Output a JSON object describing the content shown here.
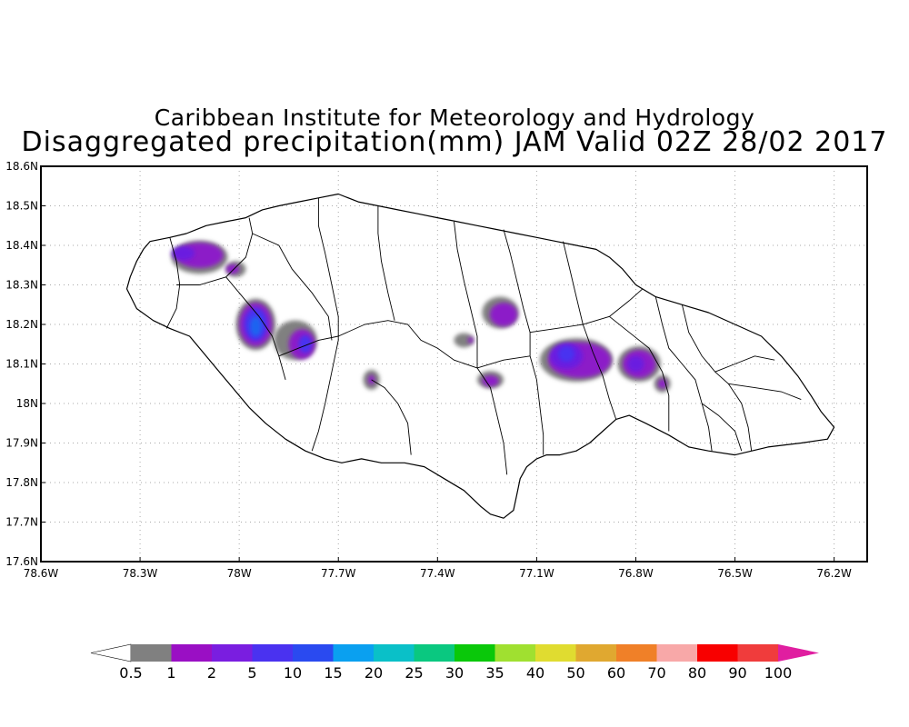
{
  "title": {
    "line1": "Caribbean Institute for Meteorology and Hydrology",
    "line2": "Disaggregated precipitation(mm) JAM Valid 02Z 28/02 2017"
  },
  "map": {
    "lon_range": [
      -78.6,
      -76.1
    ],
    "lat_range": [
      17.6,
      18.6
    ],
    "lat_ticks": [
      {
        "value": 18.6,
        "label": "18.6N"
      },
      {
        "value": 18.5,
        "label": "18.5N"
      },
      {
        "value": 18.4,
        "label": "18.4N"
      },
      {
        "value": 18.3,
        "label": "18.3N"
      },
      {
        "value": 18.2,
        "label": "18.2N"
      },
      {
        "value": 18.1,
        "label": "18.1N"
      },
      {
        "value": 18.0,
        "label": "18N"
      },
      {
        "value": 17.9,
        "label": "17.9N"
      },
      {
        "value": 17.8,
        "label": "17.8N"
      },
      {
        "value": 17.7,
        "label": "17.7N"
      },
      {
        "value": 17.6,
        "label": "17.6N"
      }
    ],
    "lon_ticks": [
      {
        "value": -78.6,
        "label": "78.6W"
      },
      {
        "value": -78.3,
        "label": "78.3W"
      },
      {
        "value": -78.0,
        "label": "78W"
      },
      {
        "value": -77.7,
        "label": "77.7W"
      },
      {
        "value": -77.4,
        "label": "77.4W"
      },
      {
        "value": -77.1,
        "label": "77.1W"
      },
      {
        "value": -76.8,
        "label": "76.8W"
      },
      {
        "value": -76.5,
        "label": "76.5W"
      },
      {
        "value": -76.2,
        "label": "76.2W"
      }
    ],
    "coastline": [
      [
        -78.34,
        18.29
      ],
      [
        -78.33,
        18.32
      ],
      [
        -78.31,
        18.36
      ],
      [
        -78.29,
        18.39
      ],
      [
        -78.27,
        18.41
      ],
      [
        -78.21,
        18.42
      ],
      [
        -78.16,
        18.43
      ],
      [
        -78.1,
        18.45
      ],
      [
        -78.04,
        18.46
      ],
      [
        -77.98,
        18.47
      ],
      [
        -77.93,
        18.49
      ],
      [
        -77.88,
        18.5
      ],
      [
        -77.82,
        18.51
      ],
      [
        -77.76,
        18.52
      ],
      [
        -77.7,
        18.53
      ],
      [
        -77.64,
        18.51
      ],
      [
        -77.58,
        18.5
      ],
      [
        -77.52,
        18.49
      ],
      [
        -77.46,
        18.48
      ],
      [
        -77.4,
        18.47
      ],
      [
        -77.34,
        18.46
      ],
      [
        -77.28,
        18.45
      ],
      [
        -77.22,
        18.44
      ],
      [
        -77.16,
        18.43
      ],
      [
        -77.1,
        18.42
      ],
      [
        -77.04,
        18.41
      ],
      [
        -76.98,
        18.4
      ],
      [
        -76.92,
        18.39
      ],
      [
        -76.88,
        18.37
      ],
      [
        -76.84,
        18.34
      ],
      [
        -76.8,
        18.3
      ],
      [
        -76.74,
        18.27
      ],
      [
        -76.66,
        18.25
      ],
      [
        -76.58,
        18.23
      ],
      [
        -76.5,
        18.2
      ],
      [
        -76.42,
        18.17
      ],
      [
        -76.36,
        18.12
      ],
      [
        -76.31,
        18.07
      ],
      [
        -76.27,
        18.02
      ],
      [
        -76.24,
        17.98
      ],
      [
        -76.2,
        17.94
      ],
      [
        -76.22,
        17.91
      ],
      [
        -76.3,
        17.9
      ],
      [
        -76.4,
        17.89
      ],
      [
        -76.5,
        17.87
      ],
      [
        -76.58,
        17.88
      ],
      [
        -76.64,
        17.89
      ],
      [
        -76.7,
        17.92
      ],
      [
        -76.77,
        17.95
      ],
      [
        -76.82,
        17.97
      ],
      [
        -76.86,
        17.96
      ],
      [
        -76.9,
        17.93
      ],
      [
        -76.94,
        17.9
      ],
      [
        -76.98,
        17.88
      ],
      [
        -77.03,
        17.87
      ],
      [
        -77.07,
        17.87
      ],
      [
        -77.1,
        17.86
      ],
      [
        -77.13,
        17.84
      ],
      [
        -77.15,
        17.81
      ],
      [
        -77.16,
        17.77
      ],
      [
        -77.17,
        17.73
      ],
      [
        -77.2,
        17.71
      ],
      [
        -77.24,
        17.72
      ],
      [
        -77.27,
        17.74
      ],
      [
        -77.32,
        17.78
      ],
      [
        -77.38,
        17.81
      ],
      [
        -77.44,
        17.84
      ],
      [
        -77.5,
        17.85
      ],
      [
        -77.57,
        17.85
      ],
      [
        -77.63,
        17.86
      ],
      [
        -77.69,
        17.85
      ],
      [
        -77.74,
        17.86
      ],
      [
        -77.8,
        17.88
      ],
      [
        -77.86,
        17.91
      ],
      [
        -77.92,
        17.95
      ],
      [
        -77.97,
        17.99
      ],
      [
        -78.02,
        18.04
      ],
      [
        -78.06,
        18.08
      ],
      [
        -78.11,
        18.13
      ],
      [
        -78.15,
        18.17
      ],
      [
        -78.21,
        18.19
      ],
      [
        -78.26,
        18.21
      ],
      [
        -78.31,
        18.24
      ],
      [
        -78.34,
        18.29
      ]
    ],
    "boundaries": [
      [
        [
          -78.22,
          18.19
        ],
        [
          -78.19,
          18.24
        ],
        [
          -78.18,
          18.3
        ],
        [
          -78.19,
          18.36
        ],
        [
          -78.21,
          18.42
        ]
      ],
      [
        [
          -78.19,
          18.3
        ],
        [
          -78.12,
          18.3
        ],
        [
          -78.04,
          18.32
        ],
        [
          -77.98,
          18.37
        ],
        [
          -77.96,
          18.43
        ],
        [
          -77.97,
          18.47
        ]
      ],
      [
        [
          -78.04,
          18.32
        ],
        [
          -77.99,
          18.27
        ],
        [
          -77.94,
          18.22
        ],
        [
          -77.9,
          18.17
        ],
        [
          -77.88,
          18.12
        ],
        [
          -77.86,
          18.06
        ]
      ],
      [
        [
          -77.96,
          18.43
        ],
        [
          -77.88,
          18.4
        ],
        [
          -77.84,
          18.34
        ],
        [
          -77.78,
          18.28
        ],
        [
          -77.73,
          18.22
        ],
        [
          -77.72,
          18.16
        ]
      ],
      [
        [
          -77.88,
          18.12
        ],
        [
          -77.82,
          18.14
        ],
        [
          -77.76,
          18.16
        ],
        [
          -77.7,
          18.17
        ]
      ],
      [
        [
          -77.76,
          18.52
        ],
        [
          -77.76,
          18.45
        ],
        [
          -77.74,
          18.38
        ],
        [
          -77.72,
          18.3
        ],
        [
          -77.7,
          18.22
        ],
        [
          -77.7,
          18.16
        ],
        [
          -77.72,
          18.08
        ],
        [
          -77.74,
          18.0
        ],
        [
          -77.76,
          17.93
        ],
        [
          -77.78,
          17.88
        ]
      ],
      [
        [
          -77.7,
          18.17
        ],
        [
          -77.62,
          18.2
        ],
        [
          -77.55,
          18.21
        ],
        [
          -77.49,
          18.2
        ],
        [
          -77.45,
          18.16
        ],
        [
          -77.4,
          18.14
        ],
        [
          -77.35,
          18.11
        ],
        [
          -77.28,
          18.09
        ]
      ],
      [
        [
          -77.58,
          18.5
        ],
        [
          -77.58,
          18.43
        ],
        [
          -77.57,
          18.36
        ],
        [
          -77.55,
          18.28
        ],
        [
          -77.53,
          18.21
        ]
      ],
      [
        [
          -77.35,
          18.46
        ],
        [
          -77.34,
          18.39
        ],
        [
          -77.32,
          18.31
        ],
        [
          -77.3,
          18.24
        ],
        [
          -77.28,
          18.17
        ],
        [
          -77.28,
          18.09
        ]
      ],
      [
        [
          -77.6,
          18.06
        ],
        [
          -77.56,
          18.04
        ],
        [
          -77.52,
          18.0
        ],
        [
          -77.49,
          17.95
        ],
        [
          -77.48,
          17.87
        ]
      ],
      [
        [
          -77.28,
          18.09
        ],
        [
          -77.24,
          18.04
        ],
        [
          -77.22,
          17.97
        ],
        [
          -77.2,
          17.9
        ],
        [
          -77.19,
          17.82
        ]
      ],
      [
        [
          -77.2,
          18.44
        ],
        [
          -77.18,
          18.38
        ],
        [
          -77.16,
          18.31
        ],
        [
          -77.14,
          18.24
        ],
        [
          -77.12,
          18.18
        ],
        [
          -77.12,
          18.12
        ]
      ],
      [
        [
          -77.28,
          18.09
        ],
        [
          -77.2,
          18.11
        ],
        [
          -77.12,
          18.12
        ]
      ],
      [
        [
          -77.12,
          18.12
        ],
        [
          -77.1,
          18.06
        ],
        [
          -77.09,
          17.99
        ],
        [
          -77.08,
          17.92
        ],
        [
          -77.08,
          17.87
        ]
      ],
      [
        [
          -77.12,
          18.18
        ],
        [
          -77.04,
          18.19
        ],
        [
          -76.96,
          18.2
        ],
        [
          -76.88,
          18.22
        ],
        [
          -76.82,
          18.26
        ],
        [
          -76.78,
          18.29
        ]
      ],
      [
        [
          -77.02,
          18.41
        ],
        [
          -77.0,
          18.34
        ],
        [
          -76.98,
          18.27
        ],
        [
          -76.96,
          18.2
        ]
      ],
      [
        [
          -76.96,
          18.2
        ],
        [
          -76.93,
          18.13
        ],
        [
          -76.9,
          18.07
        ],
        [
          -76.88,
          18.01
        ],
        [
          -76.86,
          17.96
        ]
      ],
      [
        [
          -76.88,
          18.22
        ],
        [
          -76.82,
          18.18
        ],
        [
          -76.76,
          18.14
        ],
        [
          -76.72,
          18.08
        ],
        [
          -76.7,
          18.02
        ],
        [
          -76.7,
          17.93
        ]
      ],
      [
        [
          -76.74,
          18.27
        ],
        [
          -76.72,
          18.2
        ],
        [
          -76.7,
          18.14
        ],
        [
          -76.66,
          18.1
        ],
        [
          -76.62,
          18.06
        ],
        [
          -76.6,
          18.0
        ],
        [
          -76.58,
          17.94
        ],
        [
          -76.57,
          17.88
        ]
      ],
      [
        [
          -76.66,
          18.25
        ],
        [
          -76.64,
          18.18
        ],
        [
          -76.6,
          18.12
        ],
        [
          -76.56,
          18.08
        ],
        [
          -76.52,
          18.05
        ],
        [
          -76.48,
          18.0
        ],
        [
          -76.46,
          17.94
        ],
        [
          -76.45,
          17.88
        ]
      ],
      [
        [
          -76.56,
          18.08
        ],
        [
          -76.5,
          18.1
        ],
        [
          -76.44,
          18.12
        ],
        [
          -76.38,
          18.11
        ]
      ],
      [
        [
          -76.52,
          18.05
        ],
        [
          -76.44,
          18.04
        ],
        [
          -76.36,
          18.03
        ],
        [
          -76.3,
          18.01
        ]
      ],
      [
        [
          -76.6,
          18.0
        ],
        [
          -76.55,
          17.97
        ],
        [
          -76.5,
          17.93
        ],
        [
          -76.48,
          17.88
        ]
      ]
    ],
    "precip_blobs": [
      {
        "lon": -78.12,
        "lat": 18.37,
        "rx": 0.085,
        "ry": 0.042,
        "color": "#808080"
      },
      {
        "lon": -78.12,
        "lat": 18.375,
        "rx": 0.072,
        "ry": 0.032,
        "color": "#8c1ec8"
      },
      {
        "lon": -78.17,
        "lat": 18.38,
        "rx": 0.035,
        "ry": 0.018,
        "color": "#6a1ee0"
      },
      {
        "lon": -78.01,
        "lat": 18.34,
        "rx": 0.03,
        "ry": 0.02,
        "color": "#808080"
      },
      {
        "lon": -78.02,
        "lat": 18.34,
        "rx": 0.02,
        "ry": 0.012,
        "color": "#8c1ec8"
      },
      {
        "lon": -77.95,
        "lat": 18.2,
        "rx": 0.06,
        "ry": 0.065,
        "color": "#808080"
      },
      {
        "lon": -77.95,
        "lat": 18.2,
        "rx": 0.05,
        "ry": 0.055,
        "color": "#8c1ec8"
      },
      {
        "lon": -77.95,
        "lat": 18.2,
        "rx": 0.035,
        "ry": 0.042,
        "color": "#4a32f0"
      },
      {
        "lon": -77.95,
        "lat": 18.195,
        "rx": 0.018,
        "ry": 0.025,
        "color": "#1e64f0"
      },
      {
        "lon": -77.83,
        "lat": 18.16,
        "rx": 0.065,
        "ry": 0.05,
        "color": "#808080"
      },
      {
        "lon": -77.81,
        "lat": 18.15,
        "rx": 0.04,
        "ry": 0.038,
        "color": "#8c1ec8"
      },
      {
        "lon": -77.8,
        "lat": 18.15,
        "rx": 0.02,
        "ry": 0.022,
        "color": "#4a32f0"
      },
      {
        "lon": -77.6,
        "lat": 18.06,
        "rx": 0.025,
        "ry": 0.025,
        "color": "#808080"
      },
      {
        "lon": -77.6,
        "lat": 18.06,
        "rx": 0.01,
        "ry": 0.012,
        "color": "#8c1ec8"
      },
      {
        "lon": -77.21,
        "lat": 18.23,
        "rx": 0.055,
        "ry": 0.04,
        "color": "#808080"
      },
      {
        "lon": -77.2,
        "lat": 18.225,
        "rx": 0.042,
        "ry": 0.03,
        "color": "#8c1ec8"
      },
      {
        "lon": -77.32,
        "lat": 18.16,
        "rx": 0.03,
        "ry": 0.018,
        "color": "#808080"
      },
      {
        "lon": -77.3,
        "lat": 18.16,
        "rx": 0.008,
        "ry": 0.008,
        "color": "#8c1ec8"
      },
      {
        "lon": -77.24,
        "lat": 18.06,
        "rx": 0.04,
        "ry": 0.022,
        "color": "#808080"
      },
      {
        "lon": -77.24,
        "lat": 18.057,
        "rx": 0.025,
        "ry": 0.014,
        "color": "#8c1ec8"
      },
      {
        "lon": -76.98,
        "lat": 18.11,
        "rx": 0.11,
        "ry": 0.055,
        "color": "#808080"
      },
      {
        "lon": -76.97,
        "lat": 18.11,
        "rx": 0.095,
        "ry": 0.045,
        "color": "#8c1ec8"
      },
      {
        "lon": -77.01,
        "lat": 18.12,
        "rx": 0.05,
        "ry": 0.033,
        "color": "#6a1ee0"
      },
      {
        "lon": -77.01,
        "lat": 18.125,
        "rx": 0.025,
        "ry": 0.02,
        "color": "#4a32f0"
      },
      {
        "lon": -76.79,
        "lat": 18.1,
        "rx": 0.065,
        "ry": 0.045,
        "color": "#808080"
      },
      {
        "lon": -76.79,
        "lat": 18.1,
        "rx": 0.05,
        "ry": 0.035,
        "color": "#8c1ec8"
      },
      {
        "lon": -76.8,
        "lat": 18.1,
        "rx": 0.025,
        "ry": 0.02,
        "color": "#6a1ee0"
      },
      {
        "lon": -76.72,
        "lat": 18.05,
        "rx": 0.025,
        "ry": 0.022,
        "color": "#808080"
      },
      {
        "lon": -76.72,
        "lat": 18.05,
        "rx": 0.013,
        "ry": 0.012,
        "color": "#8c1ec8"
      }
    ]
  },
  "legend": {
    "colors": [
      "#808080",
      "#9a0fc4",
      "#7a1ee0",
      "#4a32f0",
      "#2a4af0",
      "#0aa0f0",
      "#0ac0c8",
      "#0ac880",
      "#0ac80a",
      "#a0e030",
      "#e0dc30",
      "#e0a830",
      "#f08028",
      "#f8a8a8",
      "#f80000",
      "#f03c3c"
    ],
    "under_color": "#ffffff",
    "over_color": "#e01ea0",
    "labels": [
      "0.5",
      "1",
      "2",
      "5",
      "10",
      "15",
      "20",
      "25",
      "30",
      "35",
      "40",
      "50",
      "60",
      "70",
      "80",
      "90",
      "100"
    ]
  }
}
